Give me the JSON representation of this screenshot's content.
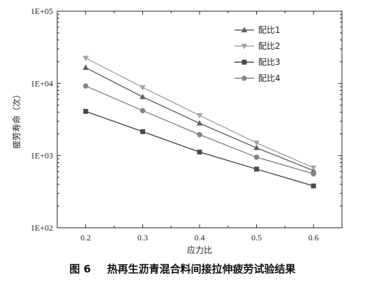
{
  "caption": {
    "figure_number": "图 6",
    "title": "热再生沥青混合料间接拉伸疲劳试验结果"
  },
  "colors": {
    "series1": "#606060",
    "series2": "#a5a5a5",
    "series3": "#4a4a4a",
    "series4": "#858585",
    "axis": "#222222"
  },
  "chart_data": {
    "type": "line",
    "title": "",
    "xlabel": "应力比",
    "ylabel": "疲劳寿命（次）",
    "x": [
      0.2,
      0.3,
      0.4,
      0.5,
      0.6
    ],
    "xlim": [
      0.15,
      0.65
    ],
    "ylim": [
      100,
      100000
    ],
    "yscale": "log",
    "xticks": [
      "0.2",
      "0.3",
      "0.4",
      "0.5",
      "0.6"
    ],
    "yticks": [
      {
        "value": 100,
        "label": "1E+02"
      },
      {
        "value": 1000,
        "label": "1E+03"
      },
      {
        "value": 10000,
        "label": "1E+04"
      },
      {
        "value": 100000,
        "label": "1E+05"
      }
    ],
    "grid": false,
    "legend_position": "top-right",
    "series": [
      {
        "name": "配比1",
        "marker": "triangle-up",
        "values": [
          16500,
          6500,
          2800,
          1280,
          620
        ]
      },
      {
        "name": "配比2",
        "marker": "triangle-down",
        "values": [
          22500,
          8800,
          3600,
          1500,
          680
        ]
      },
      {
        "name": "配比3",
        "marker": "square",
        "values": [
          4100,
          2150,
          1120,
          650,
          380
        ]
      },
      {
        "name": "配比4",
        "marker": "circle",
        "values": [
          9200,
          4200,
          1950,
          950,
          560
        ]
      }
    ]
  }
}
